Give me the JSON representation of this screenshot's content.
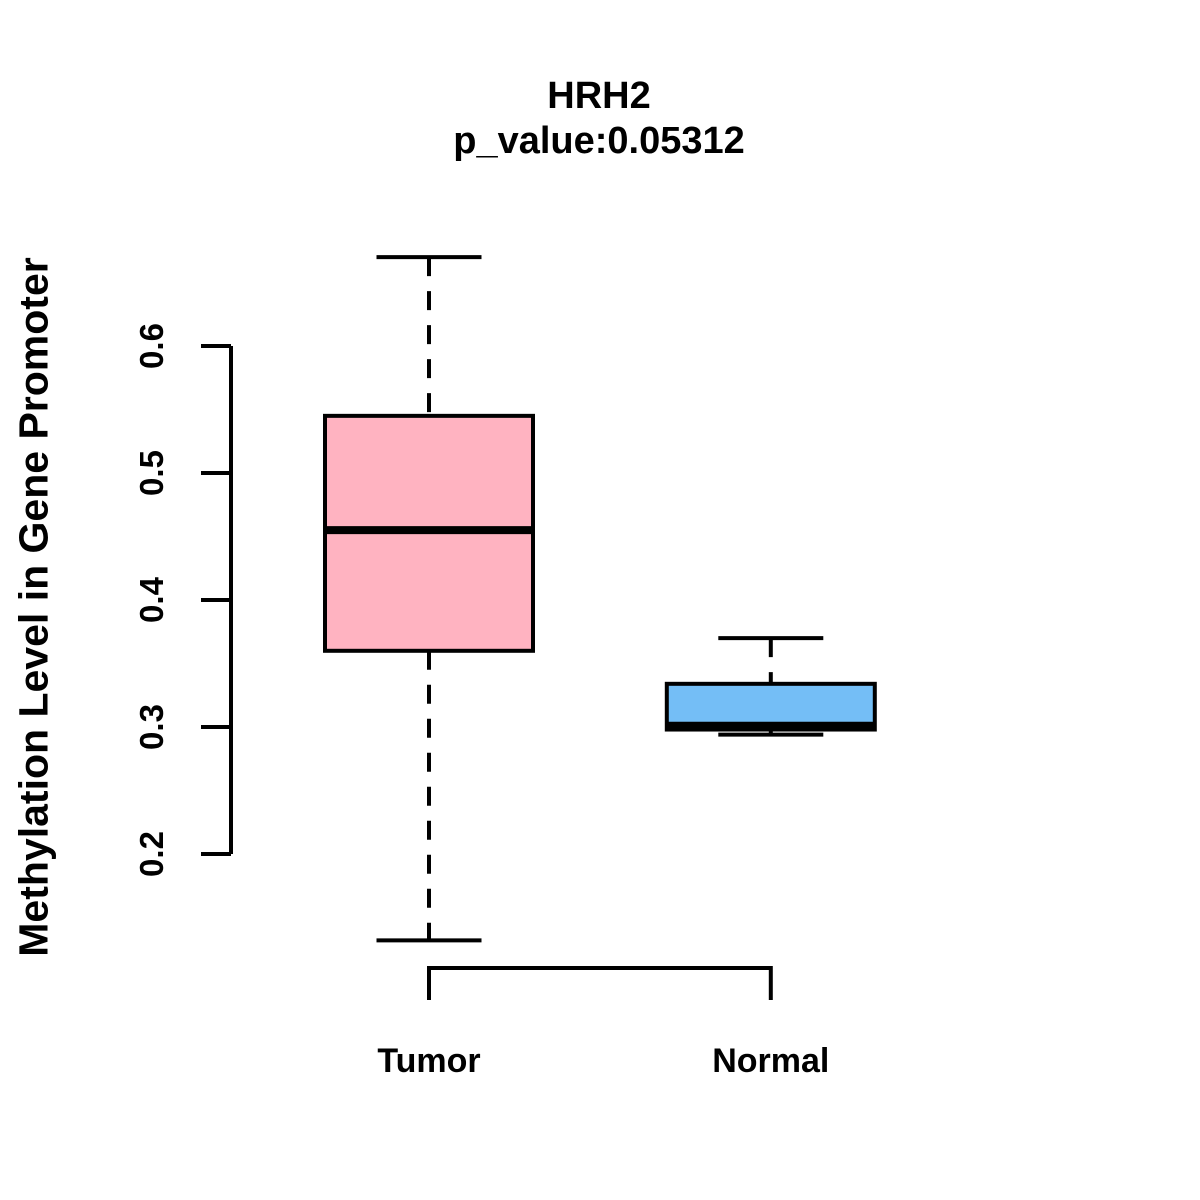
{
  "title": "HRH2",
  "subtitle": "p_value:0.05312",
  "y_axis_title": "Methylation Level in Gene Promoter",
  "chart_data": {
    "type": "boxplot",
    "title": "HRH2",
    "subtitle": "p_value:0.05312",
    "xlabel": "",
    "ylabel": "Methylation Level in Gene Promoter",
    "categories": [
      "Tumor",
      "Normal"
    ],
    "series": [
      {
        "name": "Tumor",
        "fill_color": "#ffb3c1",
        "whisker_low": 0.132,
        "q1": 0.36,
        "median": 0.455,
        "q3": 0.545,
        "whisker_high": 0.67
      },
      {
        "name": "Normal",
        "fill_color": "#74bef6",
        "whisker_low": 0.294,
        "q1": 0.298,
        "median": 0.301,
        "q3": 0.334,
        "whisker_high": 0.37
      }
    ],
    "yticks": [
      0.2,
      0.3,
      0.4,
      0.5,
      0.6
    ],
    "ytick_labels": [
      "0.2",
      "0.3",
      "0.4",
      "0.5",
      "0.6"
    ],
    "ylim": [
      0.11,
      0.69
    ],
    "grid": false,
    "legend": "none",
    "stroke_color": "#000000",
    "background_color": "#ffffff"
  }
}
